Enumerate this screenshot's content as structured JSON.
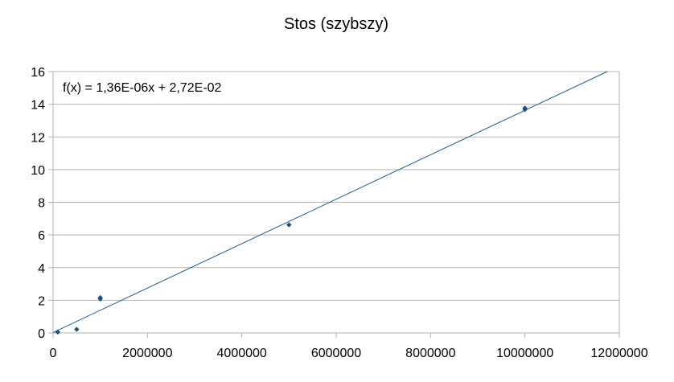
{
  "chart_data": {
    "type": "scatter",
    "title": "Stos (szybszy)",
    "xlabel": "",
    "ylabel": "",
    "xlim": [
      0,
      12000000
    ],
    "ylim": [
      0,
      16
    ],
    "x_ticks": [
      0,
      2000000,
      4000000,
      6000000,
      8000000,
      10000000,
      12000000
    ],
    "x_tick_labels": [
      "0",
      "2000000",
      "4000000",
      "6000000",
      "8000000",
      "10000000",
      "12000000"
    ],
    "y_ticks": [
      0,
      2,
      4,
      6,
      8,
      10,
      12,
      14,
      16
    ],
    "y_tick_labels": [
      "0",
      "2",
      "4",
      "6",
      "8",
      "10",
      "12",
      "14",
      "16"
    ],
    "grid": true,
    "series": [
      {
        "color": "#1f4e79",
        "points": [
          {
            "x": 100000,
            "y": 0.05
          },
          {
            "x": 500000,
            "y": 0.22
          },
          {
            "x": 1000000,
            "y": 2.08
          },
          {
            "x": 1000000,
            "y": 2.16
          },
          {
            "x": 5000000,
            "y": 6.62
          },
          {
            "x": 10000000,
            "y": 13.68
          },
          {
            "x": 10000000,
            "y": 13.76
          }
        ]
      }
    ],
    "trendline": {
      "slope": 1.36e-06,
      "intercept": 0.0272,
      "color": "#1f5f8b",
      "equation": "f(x) = 1,36E-06x + 2,72E-02"
    }
  }
}
